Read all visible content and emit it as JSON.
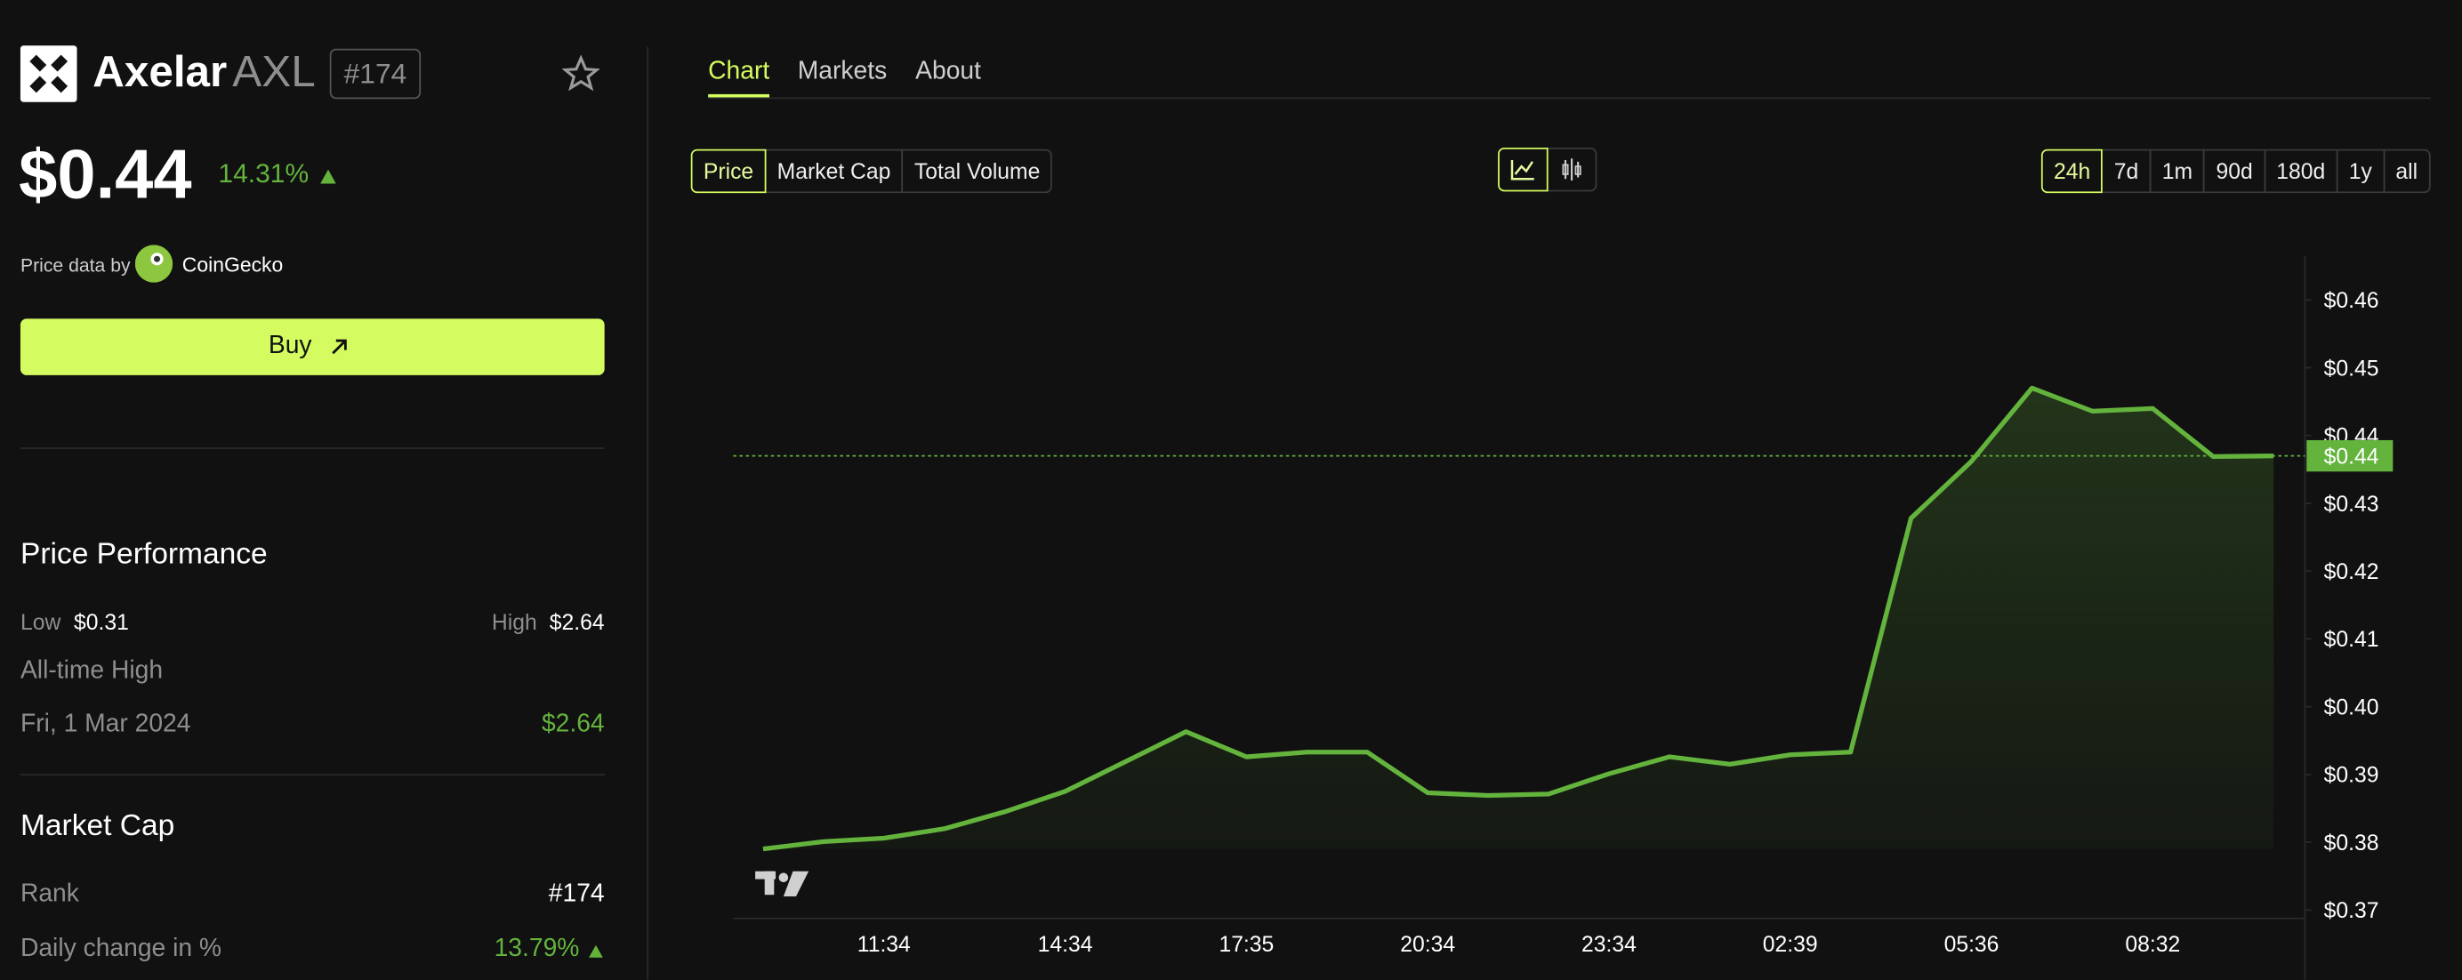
{
  "header": {
    "name": "Axelar",
    "symbol": "AXL",
    "rank": "#174"
  },
  "price": {
    "value": "$0.44",
    "change": "14.31%"
  },
  "source": {
    "prefix": "Price data by",
    "provider": "CoinGecko"
  },
  "buy_button": "Buy",
  "performance": {
    "title": "Price Performance",
    "low_label": "Low",
    "low": "$0.31",
    "high_label": "High",
    "high": "$2.64",
    "ath_title": "All-time High",
    "ath_date": "Fri, 1 Mar 2024",
    "ath_value": "$2.64"
  },
  "market_cap": {
    "title": "Market Cap",
    "rank_label": "Rank",
    "rank": "#174",
    "change_label": "Daily change in %",
    "change": "13.79%"
  },
  "tabs": {
    "items": [
      "Chart",
      "Markets",
      "About"
    ],
    "active": 0
  },
  "metrics": {
    "items": [
      "Price",
      "Market Cap",
      "Total Volume"
    ],
    "active": 0
  },
  "ranges": {
    "items": [
      "24h",
      "7d",
      "1m",
      "90d",
      "180d",
      "1y",
      "all"
    ],
    "active": 0
  },
  "chart_data": {
    "type": "line",
    "color": "#63b33d",
    "categories": [
      null,
      null,
      "11:34",
      null,
      null,
      "14:34",
      null,
      null,
      "17:35",
      null,
      null,
      "20:34",
      null,
      null,
      "23:34",
      null,
      null,
      "02:39",
      null,
      null,
      "05:36",
      null,
      null,
      "08:32",
      null,
      null
    ],
    "values": [
      0.379,
      0.3801,
      0.3806,
      0.382,
      0.3845,
      0.3875,
      0.3919,
      0.3963,
      0.3926,
      0.3933,
      0.3933,
      0.3873,
      0.3869,
      0.3871,
      0.3901,
      0.3926,
      0.3915,
      0.3929,
      0.3933,
      0.4278,
      0.4362,
      0.447,
      0.4436,
      0.444,
      0.4369,
      0.437
    ],
    "current_price": {
      "value": 0.437,
      "label": "$0.44"
    },
    "ylim": [
      0.369,
      0.4665
    ],
    "yticks": [
      {
        "value": 0.37,
        "label": "$0.37"
      },
      {
        "value": 0.38,
        "label": "$0.38"
      },
      {
        "value": 0.39,
        "label": "$0.39"
      },
      {
        "value": 0.4,
        "label": "$0.40"
      },
      {
        "value": 0.41,
        "label": "$0.41"
      },
      {
        "value": 0.42,
        "label": "$0.42"
      },
      {
        "value": 0.43,
        "label": "$0.43"
      },
      {
        "value": 0.44,
        "label": "$0.44"
      },
      {
        "value": 0.45,
        "label": "$0.45"
      },
      {
        "value": 0.46,
        "label": "$0.46"
      }
    ]
  }
}
